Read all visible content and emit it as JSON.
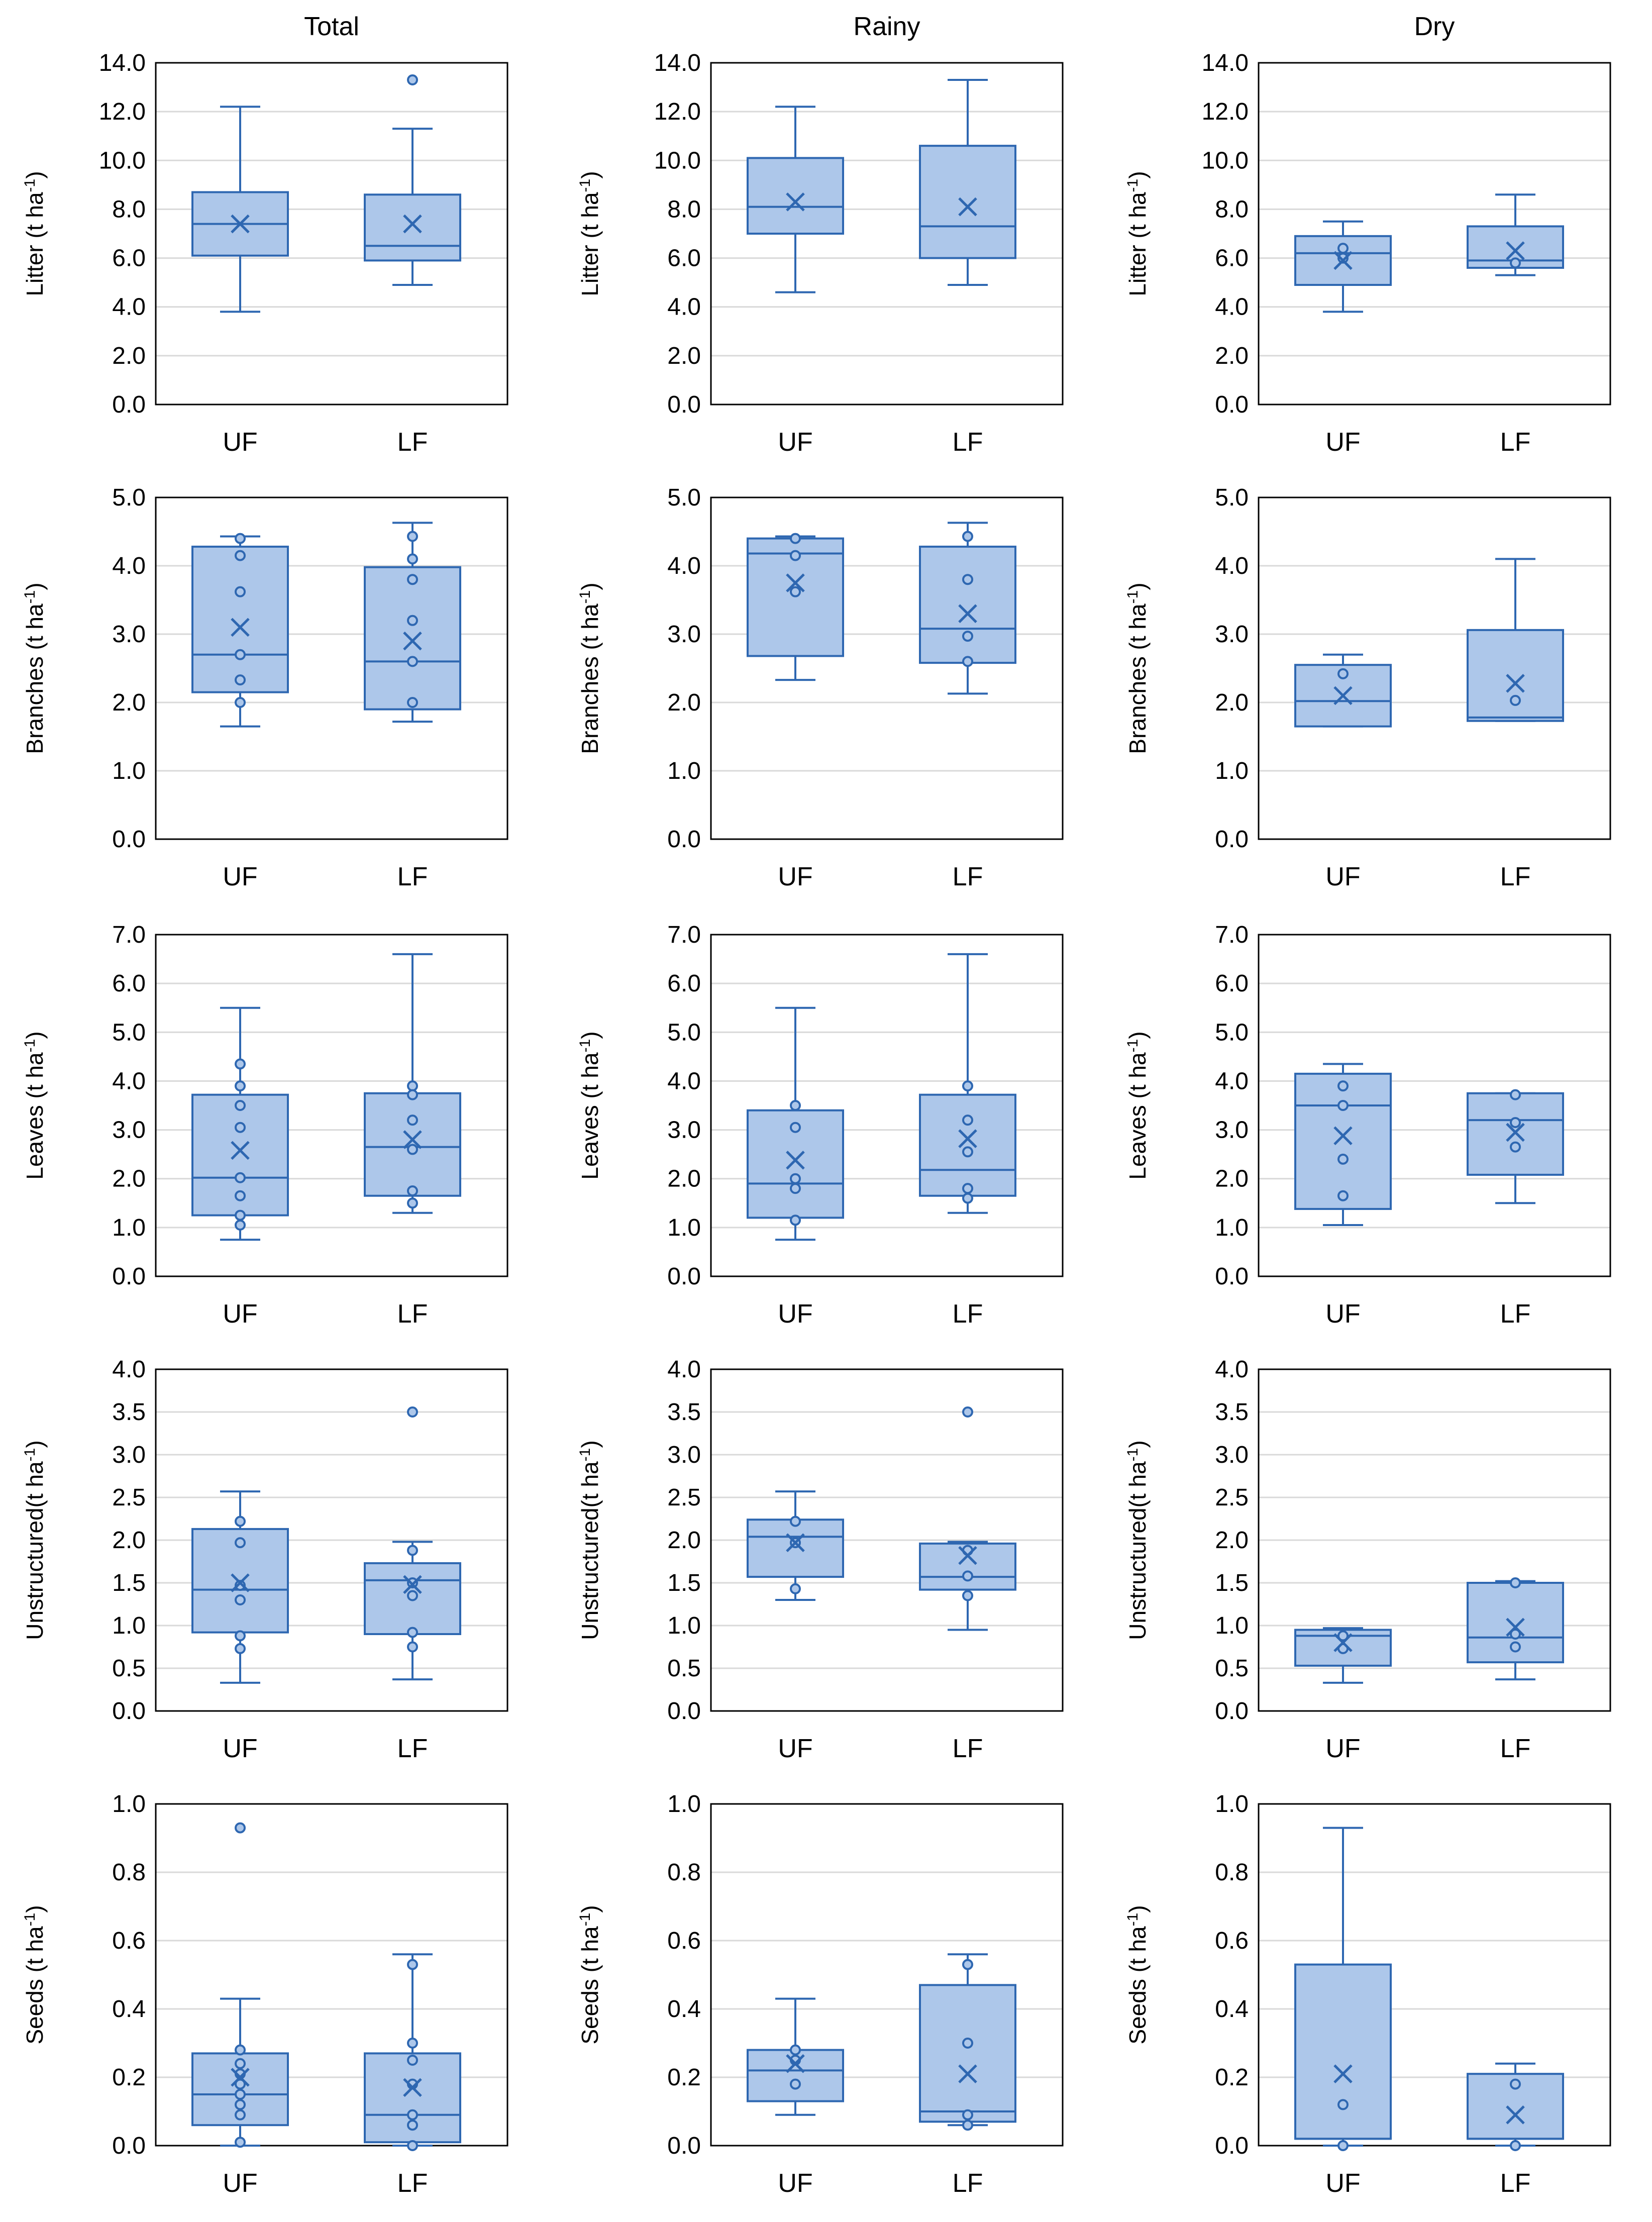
{
  "colors": {
    "box_fill": "#adc7ea",
    "stroke": "#2e67b1",
    "grid": "#d9d9d9",
    "frame": "#000000"
  },
  "chart_data": {
    "type": "box",
    "column_titles": [
      "Total",
      "Rainy",
      "Dry"
    ],
    "categories": [
      "UF",
      "LF"
    ],
    "rows": [
      {
        "ylabel": "Litter",
        "unit_text": " (t ha",
        "unit_sup": "-1",
        "unit_close": ")",
        "ylim": [
          0,
          14
        ],
        "ticks": [
          "0.0",
          "2.0",
          "4.0",
          "6.0",
          "8.0",
          "10.0",
          "12.0",
          "14.0"
        ],
        "panels": [
          {
            "boxes": [
              {
                "category": "UF",
                "min": 3.8,
                "q1": 6.1,
                "median": 7.4,
                "q3": 8.7,
                "max": 12.2,
                "mean": 7.4,
                "points": []
              },
              {
                "category": "LF",
                "min": 4.9,
                "q1": 5.9,
                "median": 6.5,
                "q3": 8.6,
                "max": 11.3,
                "mean": 7.4,
                "points": [
                  13.3
                ]
              }
            ]
          },
          {
            "boxes": [
              {
                "category": "UF",
                "min": 4.6,
                "q1": 7.0,
                "median": 8.1,
                "q3": 10.1,
                "max": 12.2,
                "mean": 8.3,
                "points": []
              },
              {
                "category": "LF",
                "min": 4.9,
                "q1": 6.0,
                "median": 7.3,
                "q3": 10.6,
                "max": 13.3,
                "mean": 8.1,
                "points": []
              }
            ]
          },
          {
            "boxes": [
              {
                "category": "UF",
                "min": 3.8,
                "q1": 4.9,
                "median": 6.2,
                "q3": 6.9,
                "max": 7.5,
                "mean": 5.9,
                "points": [
                  6.4,
                  6.0
                ]
              },
              {
                "category": "LF",
                "min": 5.3,
                "q1": 5.6,
                "median": 5.9,
                "q3": 7.3,
                "max": 8.6,
                "mean": 6.3,
                "points": [
                  5.8
                ]
              }
            ]
          }
        ]
      },
      {
        "ylabel": "Branches",
        "unit_text": " (t ha",
        "unit_sup": "-1",
        "unit_close": ")",
        "ylim": [
          0,
          5
        ],
        "ticks": [
          "0.0",
          "1.0",
          "2.0",
          "3.0",
          "4.0",
          "5.0"
        ],
        "panels": [
          {
            "boxes": [
              {
                "category": "UF",
                "min": 1.65,
                "q1": 2.15,
                "median": 2.7,
                "q3": 4.28,
                "max": 4.43,
                "mean": 3.1,
                "points": [
                  4.4,
                  4.15,
                  3.62,
                  2.7,
                  2.33,
                  2.0
                ]
              },
              {
                "category": "LF",
                "min": 1.72,
                "q1": 1.9,
                "median": 2.6,
                "q3": 3.98,
                "max": 4.63,
                "mean": 2.9,
                "points": [
                  4.43,
                  4.1,
                  3.8,
                  3.2,
                  2.6,
                  2.0
                ]
              }
            ]
          },
          {
            "boxes": [
              {
                "category": "UF",
                "min": 2.33,
                "q1": 2.68,
                "median": 4.18,
                "q3": 4.4,
                "max": 4.43,
                "mean": 3.75,
                "points": [
                  4.4,
                  4.15,
                  3.62
                ]
              },
              {
                "category": "LF",
                "min": 2.13,
                "q1": 2.58,
                "median": 3.08,
                "q3": 4.28,
                "max": 4.63,
                "mean": 3.3,
                "points": [
                  4.43,
                  3.8,
                  2.97,
                  2.6
                ]
              }
            ]
          },
          {
            "boxes": [
              {
                "category": "UF",
                "min": 1.65,
                "q1": 1.65,
                "median": 2.02,
                "q3": 2.55,
                "max": 2.7,
                "mean": 2.1,
                "points": [
                  2.42
                ]
              },
              {
                "category": "LF",
                "min": 1.73,
                "q1": 1.73,
                "median": 1.78,
                "q3": 3.06,
                "max": 4.1,
                "mean": 2.28,
                "points": [
                  2.03
                ]
              }
            ]
          }
        ]
      },
      {
        "ylabel": "Leaves",
        "unit_text": " (t ha",
        "unit_sup": "-1",
        "unit_close": ")",
        "ylim": [
          0,
          7
        ],
        "ticks": [
          "0.0",
          "1.0",
          "2.0",
          "3.0",
          "4.0",
          "5.0",
          "6.0",
          "7.0"
        ],
        "panels": [
          {
            "boxes": [
              {
                "category": "UF",
                "min": 0.75,
                "q1": 1.25,
                "median": 2.02,
                "q3": 3.72,
                "max": 5.5,
                "mean": 2.58,
                "points": [
                  4.35,
                  3.9,
                  3.5,
                  3.05,
                  2.02,
                  1.65,
                  1.25,
                  1.05
                ]
              },
              {
                "category": "LF",
                "min": 1.3,
                "q1": 1.65,
                "median": 2.65,
                "q3": 3.75,
                "max": 6.6,
                "mean": 2.8,
                "points": [
                  3.9,
                  3.72,
                  3.2,
                  2.6,
                  1.75,
                  1.5
                ]
              }
            ]
          },
          {
            "boxes": [
              {
                "category": "UF",
                "min": 0.75,
                "q1": 1.2,
                "median": 1.9,
                "q3": 3.4,
                "max": 5.5,
                "mean": 2.38,
                "points": [
                  3.5,
                  3.05,
                  2.0,
                  1.8,
                  1.15
                ]
              },
              {
                "category": "LF",
                "min": 1.3,
                "q1": 1.65,
                "median": 2.18,
                "q3": 3.72,
                "max": 6.6,
                "mean": 2.82,
                "points": [
                  3.9,
                  3.2,
                  2.55,
                  1.8,
                  1.6
                ]
              }
            ]
          },
          {
            "boxes": [
              {
                "category": "UF",
                "min": 1.05,
                "q1": 1.38,
                "median": 3.5,
                "q3": 4.15,
                "max": 4.35,
                "mean": 2.88,
                "points": [
                  3.9,
                  3.5,
                  2.4,
                  1.65
                ]
              },
              {
                "category": "LF",
                "min": 1.5,
                "q1": 2.08,
                "median": 3.2,
                "q3": 3.75,
                "max": 3.75,
                "mean": 2.95,
                "points": [
                  3.72,
                  3.15,
                  2.65
                ]
              }
            ]
          }
        ]
      },
      {
        "ylabel": "Unstructured",
        "unit_text": "(t ha",
        "unit_sup": "-1",
        "unit_close": ")",
        "ylim": [
          0,
          4
        ],
        "ticks": [
          "0.0",
          "0.5",
          "1.0",
          "1.5",
          "2.0",
          "2.5",
          "3.0",
          "3.5",
          "4.0"
        ],
        "panels": [
          {
            "boxes": [
              {
                "category": "UF",
                "min": 0.33,
                "q1": 0.92,
                "median": 1.42,
                "q3": 2.13,
                "max": 2.57,
                "mean": 1.5,
                "points": [
                  2.22,
                  1.97,
                  1.47,
                  1.3,
                  0.88,
                  0.73
                ]
              },
              {
                "category": "LF",
                "min": 0.37,
                "q1": 0.9,
                "median": 1.53,
                "q3": 1.73,
                "max": 1.98,
                "mean": 1.48,
                "points": [
                  3.5,
                  1.88,
                  1.5,
                  1.35,
                  0.92,
                  0.75
                ]
              }
            ]
          },
          {
            "boxes": [
              {
                "category": "UF",
                "min": 1.3,
                "q1": 1.57,
                "median": 2.04,
                "q3": 2.24,
                "max": 2.57,
                "mean": 1.97,
                "points": [
                  2.22,
                  1.97,
                  1.43
                ]
              },
              {
                "category": "LF",
                "min": 0.95,
                "q1": 1.42,
                "median": 1.57,
                "q3": 1.96,
                "max": 1.98,
                "mean": 1.82,
                "points": [
                  3.5,
                  1.88,
                  1.58,
                  1.35
                ]
              }
            ]
          },
          {
            "boxes": [
              {
                "category": "UF",
                "min": 0.33,
                "q1": 0.53,
                "median": 0.88,
                "q3": 0.95,
                "max": 0.97,
                "mean": 0.8,
                "points": [
                  0.88,
                  0.73
                ]
              },
              {
                "category": "LF",
                "min": 0.37,
                "q1": 0.57,
                "median": 0.86,
                "q3": 1.5,
                "max": 1.52,
                "mean": 0.98,
                "points": [
                  1.5,
                  0.9,
                  0.75
                ]
              }
            ]
          }
        ]
      },
      {
        "ylabel": "Seeds",
        "unit_text": " (t ha",
        "unit_sup": "-1",
        "unit_close": ")",
        "ylim": [
          0,
          1
        ],
        "ticks": [
          "0.0",
          "0.2",
          "0.4",
          "0.6",
          "0.8",
          "1.0"
        ],
        "panels": [
          {
            "boxes": [
              {
                "category": "UF",
                "min": 0.0,
                "q1": 0.06,
                "median": 0.15,
                "q3": 0.27,
                "max": 0.43,
                "mean": 0.2,
                "points": [
                  0.93,
                  0.28,
                  0.24,
                  0.21,
                  0.18,
                  0.15,
                  0.12,
                  0.09,
                  0.01
                ]
              },
              {
                "category": "LF",
                "min": 0.0,
                "q1": 0.01,
                "median": 0.09,
                "q3": 0.27,
                "max": 0.56,
                "mean": 0.17,
                "points": [
                  0.53,
                  0.3,
                  0.25,
                  0.18,
                  0.09,
                  0.06,
                  0.0
                ]
              }
            ]
          },
          {
            "boxes": [
              {
                "category": "UF",
                "min": 0.09,
                "q1": 0.13,
                "median": 0.22,
                "q3": 0.28,
                "max": 0.43,
                "mean": 0.24,
                "points": [
                  0.28,
                  0.25,
                  0.18
                ]
              },
              {
                "category": "LF",
                "min": 0.06,
                "q1": 0.07,
                "median": 0.1,
                "q3": 0.47,
                "max": 0.56,
                "mean": 0.21,
                "points": [
                  0.53,
                  0.3,
                  0.09,
                  0.06
                ]
              }
            ]
          },
          {
            "boxes": [
              {
                "category": "UF",
                "min": 0.0,
                "q1": 0.02,
                "median": 0.02,
                "q3": 0.53,
                "max": 0.93,
                "mean": 0.21,
                "points": [
                  0.12,
                  0.0
                ]
              },
              {
                "category": "LF",
                "min": 0.0,
                "q1": 0.02,
                "median": 0.02,
                "q3": 0.21,
                "max": 0.24,
                "mean": 0.09,
                "points": [
                  0.18,
                  0.0
                ]
              }
            ]
          }
        ]
      }
    ]
  }
}
